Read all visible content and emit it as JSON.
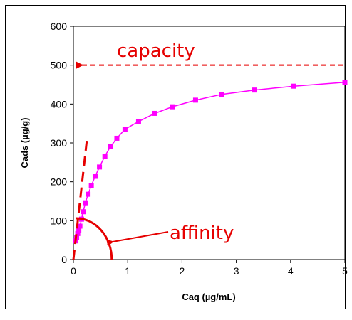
{
  "chart_data": {
    "type": "scatter",
    "title": "",
    "xlabel": "Caq (µg/mL)",
    "ylabel": "Cads (µg/g)",
    "xlim": [
      0,
      5
    ],
    "ylim": [
      0,
      600
    ],
    "x_ticks": [
      "0",
      "1",
      "2",
      "3",
      "4",
      "5"
    ],
    "y_ticks": [
      "0",
      "100",
      "200",
      "300",
      "400",
      "500",
      "600"
    ],
    "grid": false,
    "legend": "none",
    "series": [
      {
        "color": "#ff00ff",
        "marker": "square",
        "line": true,
        "x": [
          0.04,
          0.06,
          0.08,
          0.1,
          0.12,
          0.15,
          0.18,
          0.22,
          0.27,
          0.33,
          0.4,
          0.48,
          0.58,
          0.68,
          0.8,
          0.95,
          1.2,
          1.5,
          1.82,
          2.25,
          2.73,
          3.33,
          4.06,
          5.0
        ],
        "y": [
          48,
          57,
          67,
          76,
          86,
          104,
          123,
          146,
          168,
          190,
          214,
          238,
          266,
          290,
          312,
          335,
          355,
          376,
          393,
          410,
          425,
          436,
          446,
          456
        ]
      }
    ],
    "annotations": [
      {
        "text": "capacity",
        "color": "#e60000",
        "kind": "dashed-arrow",
        "y": 500
      },
      {
        "text": "affinity",
        "color": "#e60000",
        "kind": "arc-with-arrow"
      }
    ],
    "reference_lines": [
      {
        "kind": "initial-slope",
        "style": "dashed",
        "color": "#e60000",
        "x": [
          0.0,
          0.25
        ],
        "y": [
          0,
          310
        ]
      }
    ]
  }
}
